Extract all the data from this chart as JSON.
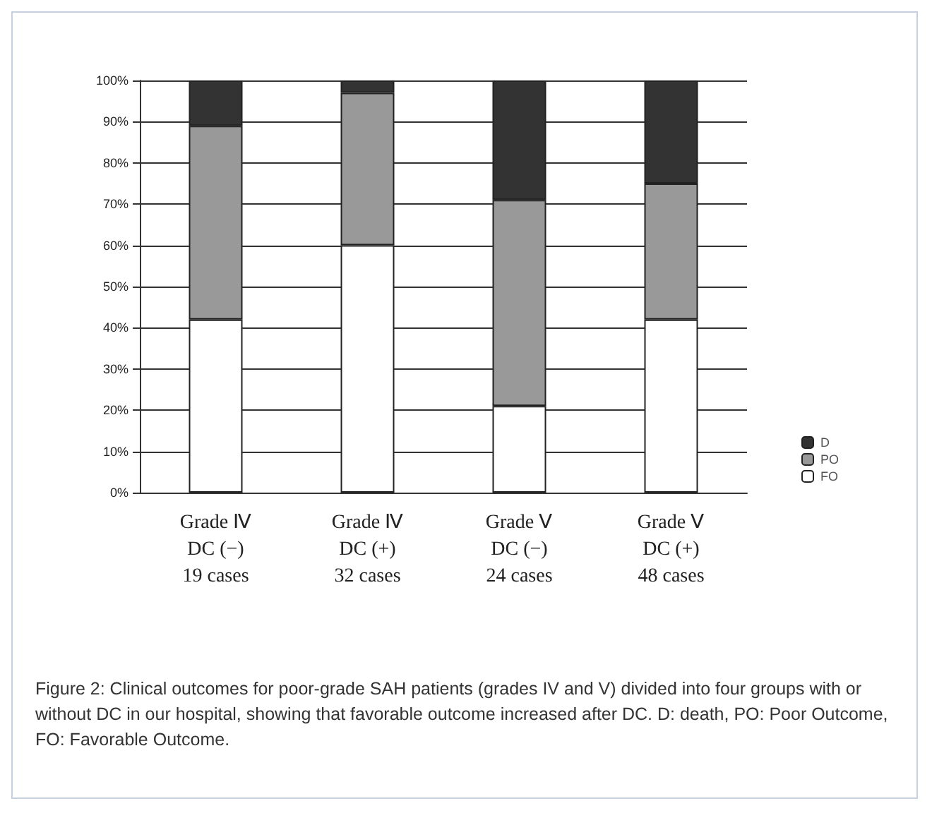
{
  "chart_data": {
    "type": "bar",
    "stacked": true,
    "categories": [
      "Grade Ⅳ\nDC (−)\n19 cases",
      "Grade Ⅳ\nDC (+)\n32 cases",
      "Grade Ⅴ\nDC (−)\n24 cases",
      "Grade Ⅴ\nDC (+)\n48 cases"
    ],
    "series": [
      {
        "name": "FO",
        "color": "#ffffff",
        "values": [
          42,
          60,
          21,
          42
        ]
      },
      {
        "name": "PO",
        "color": "#999999",
        "values": [
          47,
          37,
          50,
          33
        ]
      },
      {
        "name": "D",
        "color": "#333333",
        "values": [
          11,
          3,
          29,
          25
        ]
      }
    ],
    "ylim": [
      0,
      100
    ],
    "yticks": [
      {
        "value": 0,
        "label": "0%"
      },
      {
        "value": 10,
        "label": "10%"
      },
      {
        "value": 20,
        "label": "20%"
      },
      {
        "value": 30,
        "label": "30%"
      },
      {
        "value": 40,
        "label": "40%"
      },
      {
        "value": 50,
        "label": "50%"
      },
      {
        "value": 60,
        "label": "60%"
      },
      {
        "value": 70,
        "label": "70%"
      },
      {
        "value": 80,
        "label": "80%"
      },
      {
        "value": 90,
        "label": "90%"
      },
      {
        "value": 100,
        "label": "100%"
      }
    ],
    "grid": "y",
    "legend": "bottom right",
    "annotations": [
      "Figure 2: Clinical outcomes for poor-grade SAH patients (grades IV and V) divided into four groups with or without DC in our hospital, showing that favorable outcome increased after DC. D: death, PO: Poor Outcome, FO: Favorable Outcome."
    ]
  }
}
